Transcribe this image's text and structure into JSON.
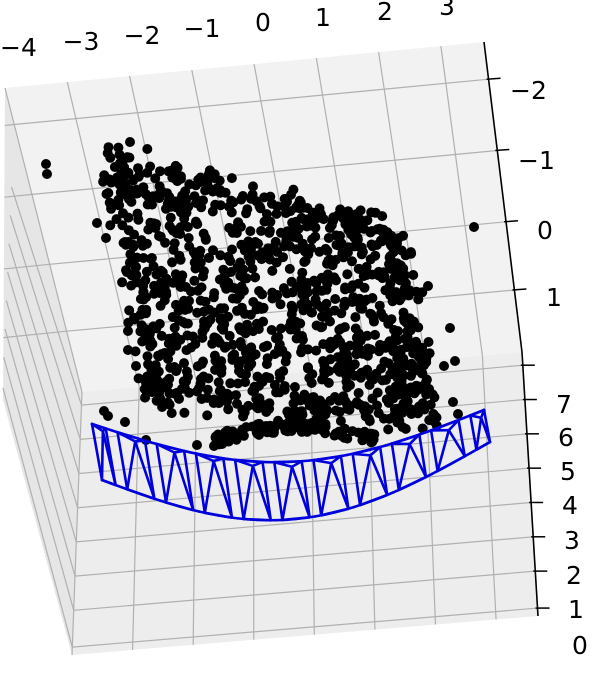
{
  "chart_data": {
    "type": "scatter",
    "projection": "3d",
    "title": "",
    "xlabel": "",
    "ylabel": "",
    "zlabel": "",
    "grid": true,
    "legend": "none",
    "x_ticks": [
      "−4",
      "−3",
      "−2",
      "−1",
      "0",
      "1",
      "2",
      "3"
    ],
    "y_ticks": [
      "−2",
      "−1",
      "0",
      "1"
    ],
    "z_ticks": [
      "7",
      "6",
      "5",
      "4",
      "3",
      "2",
      "1",
      "0"
    ],
    "xlim": [
      -4,
      3.6
    ],
    "ylim": [
      -2.2,
      1.3
    ],
    "zlim": [
      0,
      7.5
    ],
    "series": [
      {
        "kind": "point-cloud",
        "color": "#000000",
        "description_points": "dense reconstructed points, roughly x in [-2, 2], y in [-1.8, 1.3], z in [4, 6]"
      },
      {
        "kind": "camera-frustums",
        "color": "#0000dd",
        "count": 11
      }
    ]
  },
  "colors": {
    "pane_back": "#f2f2f2",
    "pane_side": "#e6e6e6",
    "pane_floor": "#ededed",
    "grid": "#b0b0b0",
    "points": "#000000",
    "cameras": "#0000dd"
  }
}
